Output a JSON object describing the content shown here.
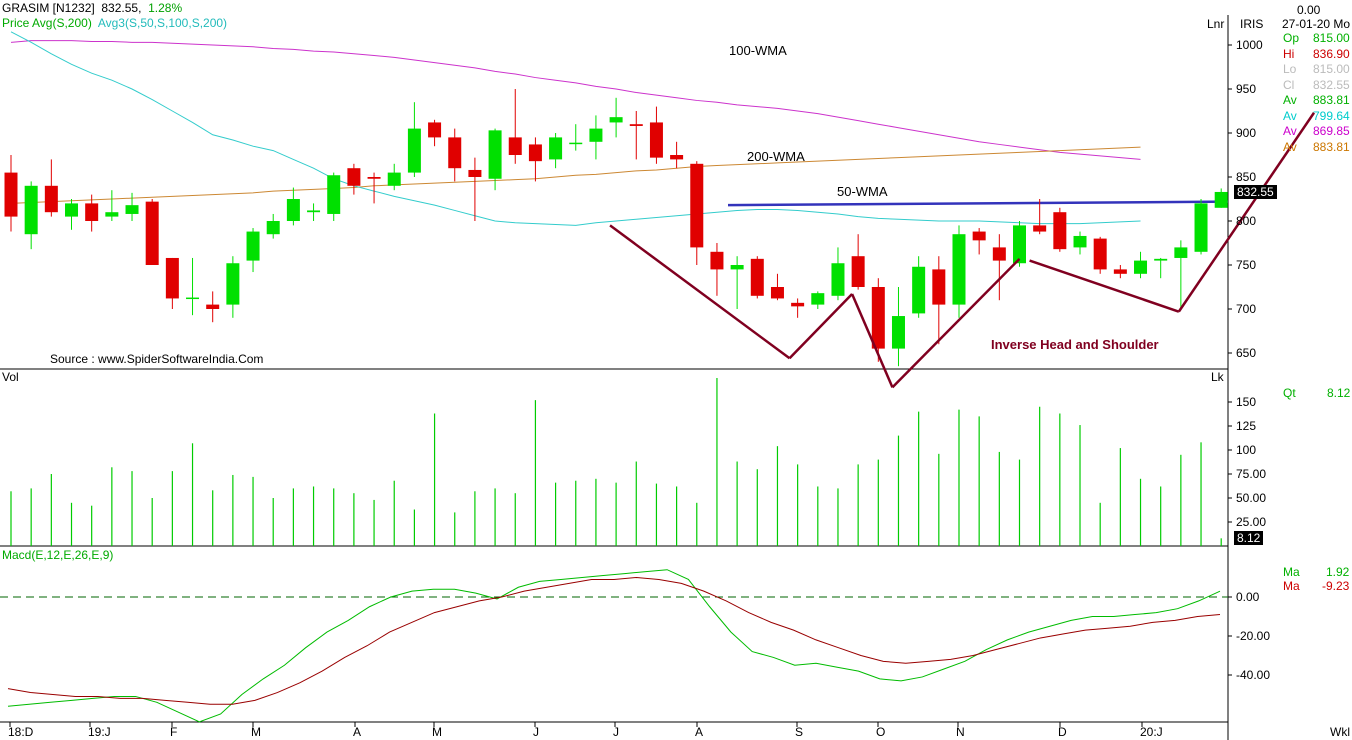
{
  "header": {
    "symbol": "GRASIM [N1232]",
    "last_price": "832.55",
    "change_pct": "1.28%",
    "indicator_label_1": "Price  Avg(S,200)",
    "indicator_label_2": "Avg3(S,50,S,100,S,200)",
    "scale_mode": "Lnr",
    "exchange": "IRIS",
    "top_value": "0.00",
    "date_label": "27-01-20 Mo"
  },
  "ohlc_panel": [
    {
      "key": "Op",
      "value": "815.00",
      "color": "#00b000"
    },
    {
      "key": "Hi",
      "value": "836.90",
      "color": "#cc0000"
    },
    {
      "key": "Lo",
      "value": "815.00",
      "color": "#bbbbbb"
    },
    {
      "key": "Cl",
      "value": "832.55",
      "color": "#bbbbbb"
    },
    {
      "key": "Av",
      "value": "883.81",
      "color": "#00b000"
    },
    {
      "key": "Av",
      "value": "799.64",
      "color": "#00cccc"
    },
    {
      "key": "Av",
      "value": "869.85",
      "color": "#cc00cc"
    },
    {
      "key": "Av",
      "value": "883.81",
      "color": "#cc7700"
    }
  ],
  "price_badge": "832.55",
  "annotations": {
    "wma100": "100-WMA",
    "wma200": "200-WMA",
    "wma50": "50-WMA",
    "pattern": "Inverse Head and Shoulder",
    "source": "Source : www.SpiderSoftwareIndia.Com"
  },
  "volume_panel": {
    "label": "Vol",
    "lk": "Lk",
    "qt_key": "Qt",
    "qt_value": "8.12",
    "badge": "8.12"
  },
  "macd_panel": {
    "label": "Macd(E,12,E,26,E,9)",
    "ma1_key": "Ma",
    "ma1_value": "1.92",
    "ma2_key": "Ma",
    "ma2_value": "-9.23"
  },
  "footer": {
    "wkl": "Wkl"
  },
  "colors": {
    "up": "#00e000",
    "down": "#e00000",
    "ma100": "#cc33cc",
    "ma200": "#cc8833",
    "ma50": "#33cccc",
    "wma50_line": "#3333bb",
    "pattern": "#800020",
    "vol": "#00cc00",
    "macd": "#00bb00",
    "signal": "#990000"
  },
  "chart_data": [
    {
      "type": "candlestick",
      "title": "GRASIM [N1232]",
      "x_ticks": [
        "18:D",
        "19:J",
        "F",
        "M",
        "A",
        "M",
        "J",
        "J",
        "A",
        "S",
        "O",
        "N",
        "D",
        "20:J"
      ],
      "y_ticks": [
        650,
        700,
        750,
        800,
        850,
        900,
        950,
        1000
      ],
      "ylim": [
        625,
        1035
      ],
      "candles": [
        {
          "o": 855,
          "h": 875,
          "l": 788,
          "c": 805
        },
        {
          "o": 785,
          "h": 845,
          "l": 768,
          "c": 840
        },
        {
          "o": 840,
          "h": 870,
          "l": 805,
          "c": 810
        },
        {
          "o": 805,
          "h": 825,
          "l": 790,
          "c": 820
        },
        {
          "o": 820,
          "h": 830,
          "l": 788,
          "c": 800
        },
        {
          "o": 805,
          "h": 835,
          "l": 800,
          "c": 810
        },
        {
          "o": 808,
          "h": 832,
          "l": 800,
          "c": 818
        },
        {
          "o": 822,
          "h": 825,
          "l": 750,
          "c": 750
        },
        {
          "o": 758,
          "h": 758,
          "l": 700,
          "c": 712
        },
        {
          "o": 713,
          "h": 758,
          "l": 693,
          "c": 713
        },
        {
          "o": 705,
          "h": 720,
          "l": 685,
          "c": 700
        },
        {
          "o": 705,
          "h": 760,
          "l": 690,
          "c": 752
        },
        {
          "o": 755,
          "h": 792,
          "l": 742,
          "c": 788
        },
        {
          "o": 785,
          "h": 808,
          "l": 780,
          "c": 800
        },
        {
          "o": 800,
          "h": 838,
          "l": 795,
          "c": 825
        },
        {
          "o": 810,
          "h": 820,
          "l": 800,
          "c": 812
        },
        {
          "o": 808,
          "h": 855,
          "l": 800,
          "c": 852
        },
        {
          "o": 860,
          "h": 865,
          "l": 830,
          "c": 840
        },
        {
          "o": 850,
          "h": 855,
          "l": 820,
          "c": 848
        },
        {
          "o": 840,
          "h": 865,
          "l": 835,
          "c": 855
        },
        {
          "o": 855,
          "h": 935,
          "l": 850,
          "c": 905
        },
        {
          "o": 912,
          "h": 915,
          "l": 885,
          "c": 895
        },
        {
          "o": 895,
          "h": 905,
          "l": 845,
          "c": 860
        },
        {
          "o": 858,
          "h": 872,
          "l": 800,
          "c": 850
        },
        {
          "o": 848,
          "h": 905,
          "l": 835,
          "c": 903
        },
        {
          "o": 895,
          "h": 950,
          "l": 865,
          "c": 875
        },
        {
          "o": 887,
          "h": 895,
          "l": 845,
          "c": 868
        },
        {
          "o": 870,
          "h": 900,
          "l": 860,
          "c": 895
        },
        {
          "o": 888,
          "h": 910,
          "l": 880,
          "c": 889
        },
        {
          "o": 890,
          "h": 920,
          "l": 870,
          "c": 905
        },
        {
          "o": 912,
          "h": 940,
          "l": 895,
          "c": 918
        },
        {
          "o": 910,
          "h": 925,
          "l": 870,
          "c": 908
        },
        {
          "o": 912,
          "h": 930,
          "l": 865,
          "c": 872
        },
        {
          "o": 875,
          "h": 890,
          "l": 860,
          "c": 870
        },
        {
          "o": 865,
          "h": 868,
          "l": 750,
          "c": 770
        },
        {
          "o": 765,
          "h": 775,
          "l": 715,
          "c": 745
        },
        {
          "o": 745,
          "h": 760,
          "l": 700,
          "c": 750
        },
        {
          "o": 757,
          "h": 760,
          "l": 712,
          "c": 715
        },
        {
          "o": 725,
          "h": 740,
          "l": 710,
          "c": 712
        },
        {
          "o": 707,
          "h": 712,
          "l": 690,
          "c": 703
        },
        {
          "o": 705,
          "h": 720,
          "l": 700,
          "c": 718
        },
        {
          "o": 715,
          "h": 770,
          "l": 710,
          "c": 752
        },
        {
          "o": 760,
          "h": 785,
          "l": 722,
          "c": 725
        },
        {
          "o": 725,
          "h": 735,
          "l": 640,
          "c": 655
        },
        {
          "o": 655,
          "h": 725,
          "l": 635,
          "c": 692
        },
        {
          "o": 695,
          "h": 760,
          "l": 690,
          "c": 748
        },
        {
          "o": 745,
          "h": 760,
          "l": 660,
          "c": 705
        },
        {
          "o": 705,
          "h": 795,
          "l": 690,
          "c": 785
        },
        {
          "o": 788,
          "h": 792,
          "l": 762,
          "c": 778
        },
        {
          "o": 770,
          "h": 785,
          "l": 710,
          "c": 755
        },
        {
          "o": 752,
          "h": 800,
          "l": 748,
          "c": 795
        },
        {
          "o": 795,
          "h": 825,
          "l": 785,
          "c": 788
        },
        {
          "o": 810,
          "h": 815,
          "l": 765,
          "c": 768
        },
        {
          "o": 770,
          "h": 788,
          "l": 762,
          "c": 783
        },
        {
          "o": 780,
          "h": 782,
          "l": 740,
          "c": 745
        },
        {
          "o": 745,
          "h": 750,
          "l": 735,
          "c": 740
        },
        {
          "o": 740,
          "h": 765,
          "l": 735,
          "c": 755
        },
        {
          "o": 755,
          "h": 758,
          "l": 735,
          "c": 757
        },
        {
          "o": 758,
          "h": 778,
          "l": 700,
          "c": 770
        },
        {
          "o": 765,
          "h": 825,
          "l": 762,
          "c": 820
        },
        {
          "o": 815,
          "h": 837,
          "l": 815,
          "c": 833
        }
      ],
      "series": [
        {
          "name": "100-WMA",
          "values": [
            1003,
            1005,
            1005,
            1005,
            1004,
            1004,
            1003,
            1003,
            1002,
            1001,
            1000,
            999,
            998,
            996,
            995,
            993,
            992,
            990,
            988,
            986,
            983,
            980,
            977,
            974,
            970,
            967,
            963,
            960,
            957,
            953,
            950,
            946,
            943,
            940,
            937,
            935,
            932,
            930,
            928,
            925,
            922,
            918,
            914,
            910,
            906,
            902,
            898,
            894,
            890,
            887,
            884,
            881,
            878,
            876,
            874,
            872,
            870
          ]
        },
        {
          "name": "200-WMA",
          "values": [
            820,
            821,
            822,
            823,
            824,
            825,
            826,
            827,
            828,
            829,
            830,
            831,
            832,
            834,
            835,
            836,
            837,
            838,
            840,
            841,
            842,
            843,
            844,
            845,
            846,
            847,
            848,
            850,
            852,
            853,
            855,
            857,
            858,
            860,
            862,
            863,
            864,
            865,
            866,
            867,
            868,
            869,
            870,
            871,
            872,
            873,
            874,
            875,
            876,
            877,
            878,
            879,
            880,
            881,
            882,
            883,
            884
          ]
        },
        {
          "name": "50-WMA",
          "values": [
            1015,
            1003,
            990,
            978,
            968,
            960,
            950,
            938,
            925,
            912,
            898,
            892,
            885,
            880,
            870,
            860,
            848,
            840,
            834,
            828,
            823,
            818,
            812,
            806,
            800,
            798,
            797,
            796,
            795,
            798,
            800,
            802,
            804,
            806,
            808,
            810,
            812,
            813,
            813,
            812,
            810,
            808,
            805,
            803,
            802,
            801,
            800,
            800,
            800,
            799,
            798,
            797,
            797,
            797,
            798,
            799,
            800
          ]
        },
        {
          "name": "50-WMA (drawn)",
          "values": [
            818,
            822
          ]
        }
      ]
    },
    {
      "type": "bar",
      "title": "Vol",
      "y_ticks": [
        25,
        50,
        75,
        100,
        125,
        150
      ],
      "ylim": [
        0,
        165
      ],
      "values": [
        57,
        60,
        75,
        45,
        42,
        82,
        78,
        50,
        78,
        107,
        58,
        74,
        72,
        50,
        60,
        62,
        60,
        55,
        48,
        68,
        38,
        138,
        35,
        57,
        60,
        55,
        152,
        66,
        68,
        70,
        66,
        88,
        65,
        62,
        45,
        175,
        88,
        80,
        104,
        85,
        62,
        60,
        85,
        90,
        115,
        140,
        96,
        142,
        135,
        98,
        90,
        145,
        138,
        126,
        45,
        102,
        70,
        62,
        95,
        108,
        8
      ]
    },
    {
      "type": "line",
      "title": "Macd(E,12,E,26,E,9)",
      "y_ticks": [
        "0.00",
        "-20.00",
        "-40.00"
      ],
      "ylim": [
        -65,
        18
      ],
      "series": [
        {
          "name": "Macd",
          "values": [
            -56,
            -55,
            -54,
            -53,
            -52,
            -51,
            -51,
            -54,
            -59,
            -64,
            -60,
            -50,
            -42,
            -35,
            -26,
            -18,
            -12,
            -5,
            0,
            3,
            4,
            4,
            2,
            -1,
            5,
            8,
            9,
            10,
            11,
            12,
            13,
            14,
            9,
            -5,
            -18,
            -28,
            -31,
            -35,
            -34,
            -36,
            -38,
            -42,
            -43,
            -41,
            -37,
            -33,
            -27,
            -22,
            -18,
            -15,
            -12,
            -10,
            -10,
            -9,
            -8,
            -6,
            -2,
            3
          ]
        },
        {
          "name": "Signal",
          "values": [
            -47,
            -49,
            -50,
            -51,
            -51,
            -52,
            -52,
            -53,
            -54,
            -55,
            -55,
            -53,
            -49,
            -44,
            -38,
            -31,
            -25,
            -18,
            -13,
            -8,
            -5,
            -2,
            0,
            3,
            5,
            7,
            9,
            9,
            10,
            9,
            7,
            3,
            -2,
            -8,
            -13,
            -17,
            -22,
            -26,
            -30,
            -33,
            -34,
            -33,
            -32,
            -30,
            -27,
            -24,
            -21,
            -19,
            -17,
            -16,
            -15,
            -13,
            -12,
            -10,
            -9
          ]
        }
      ]
    }
  ]
}
